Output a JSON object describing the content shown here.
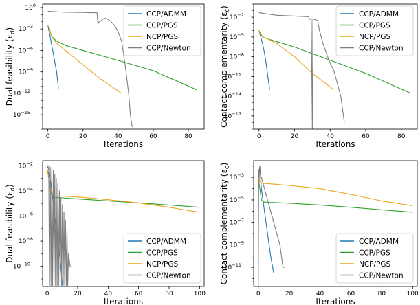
{
  "chart_data": [
    {
      "type": "line",
      "xlabel": "Iterations",
      "ylabel": "Dual feasibility (ε_d)",
      "yscale": "log",
      "xlim": [
        -3,
        89
      ],
      "ylim": [
        1e-17,
        3
      ],
      "xticks": [
        0,
        20,
        40,
        60,
        80
      ],
      "yticks": [
        {
          "v": 1,
          "t": "10",
          "e": "0"
        },
        {
          "v": 0.001,
          "t": "10",
          "e": "−3"
        },
        {
          "v": 1e-06,
          "t": "10",
          "e": "−6"
        },
        {
          "v": 1e-09,
          "t": "10",
          "e": "−9"
        },
        {
          "v": 1e-12,
          "t": "10",
          "e": "−12"
        },
        {
          "v": 1e-15,
          "t": "10",
          "e": "−15"
        }
      ],
      "legend_position": "top-right",
      "series": [
        {
          "name": "CCP/ADMM",
          "color": "#1f77b4",
          "x": [
            0,
            1,
            2,
            3,
            4,
            5,
            6
          ],
          "y": [
            0.003,
            0.0002,
            1e-05,
            5e-07,
            2e-08,
            1e-09,
            5e-12
          ]
        },
        {
          "name": "CCP/PGS",
          "color": "#2ca02c",
          "x": [
            0,
            1,
            2,
            5,
            10,
            20,
            40,
            60,
            85
          ],
          "y": [
            0.003,
            0.001,
            0.0001,
            2e-05,
            5e-06,
            1e-06,
            4e-08,
            1.5e-09,
            3e-12
          ]
        },
        {
          "name": "NCP/PGS",
          "color": "#e8a317",
          "x": [
            0,
            1,
            2,
            5,
            10,
            20,
            30,
            42
          ],
          "y": [
            0.003,
            0.001,
            0.0001,
            1e-05,
            1e-06,
            1e-08,
            1e-10,
            1e-12
          ]
        },
        {
          "name": "CCP/Newton",
          "color": "#7f7f7f",
          "x": [
            0,
            5,
            10,
            20,
            28,
            28.3,
            28.6,
            29,
            30,
            31,
            32,
            33,
            34,
            36,
            38,
            40,
            42,
            44,
            45,
            46,
            47,
            48
          ],
          "y": [
            0.3,
            0.25,
            0.22,
            0.2,
            0.18,
            0.02,
            0.005,
            0.01,
            0.012,
            0.02,
            0.03,
            0.03,
            0.025,
            0.01,
            0.003,
            0.0004,
            2e-05,
            1e-08,
            1e-10,
            1e-12,
            1e-15,
            2e-17
          ]
        }
      ]
    },
    {
      "type": "line",
      "xlabel": "Iterations",
      "ylabel": "Contact complementarity (ε_c)",
      "yscale": "log",
      "xlim": [
        -3,
        89
      ],
      "ylim": [
        1e-19,
        1
      ],
      "xticks": [
        0,
        20,
        40,
        60,
        80
      ],
      "yticks": [
        {
          "v": 0.01,
          "t": "10",
          "e": "−2"
        },
        {
          "v": 1e-05,
          "t": "10",
          "e": "−5"
        },
        {
          "v": 1e-08,
          "t": "10",
          "e": "−8"
        },
        {
          "v": 1e-11,
          "t": "10",
          "e": "−11"
        },
        {
          "v": 1e-14,
          "t": "10",
          "e": "−14"
        },
        {
          "v": 1e-17,
          "t": "10",
          "e": "−17"
        }
      ],
      "legend_position": "top-right",
      "series": [
        {
          "name": "CCP/ADMM",
          "color": "#1f77b4",
          "x": [
            0,
            1,
            2,
            3,
            4,
            5,
            6
          ],
          "y": [
            0.0001,
            1e-05,
            1e-06,
            5e-08,
            1e-09,
            1e-11,
            1e-13
          ]
        },
        {
          "name": "CCP/PGS",
          "color": "#2ca02c",
          "x": [
            0,
            1,
            2,
            5,
            10,
            20,
            40,
            60,
            85
          ],
          "y": [
            0.0001,
            3e-05,
            1e-05,
            5e-06,
            2e-06,
            3e-07,
            3e-09,
            3e-11,
            3e-14
          ]
        },
        {
          "name": "NCP/PGS",
          "color": "#e8a317",
          "x": [
            0,
            1,
            2,
            5,
            10,
            20,
            30,
            42
          ],
          "y": [
            0.0001,
            2e-05,
            1e-05,
            5e-06,
            1e-06,
            1e-08,
            3e-11,
            1e-13
          ]
        },
        {
          "name": "CCP/Newton",
          "color": "#7f7f7f",
          "x": [
            0,
            5,
            10,
            20,
            28,
            28.4,
            29.4,
            30,
            30.3,
            31,
            32,
            33,
            34,
            36,
            38,
            40,
            42,
            44,
            46,
            47,
            48
          ],
          "y": [
            0.05,
            0.03,
            0.02,
            0.015,
            0.012,
            0.005,
            0.005,
            1e-19,
            0.005,
            0.005,
            0.004,
            0.003,
            0.0001,
            1e-06,
            3e-08,
            1e-09,
            1e-10,
            1e-12,
            1e-14,
            1e-16,
            1e-18
          ]
        }
      ]
    },
    {
      "type": "line",
      "xlabel": "Iterations",
      "ylabel": "Dual feasibility (ε_d)",
      "yscale": "log",
      "xlim": [
        -3,
        103
      ],
      "ylim": [
        2.5e-12,
        0.025
      ],
      "xticks": [
        0,
        20,
        40,
        60,
        80,
        100
      ],
      "yticks": [
        {
          "v": 0.01,
          "t": "10",
          "e": "−2"
        },
        {
          "v": 0.0001,
          "t": "10",
          "e": "−4"
        },
        {
          "v": 1e-06,
          "t": "10",
          "e": "−6"
        },
        {
          "v": 1e-08,
          "t": "10",
          "e": "−8"
        },
        {
          "v": 1e-10,
          "t": "10",
          "e": "−10"
        }
      ],
      "legend_position": "bottom-right",
      "series": [
        {
          "name": "CCP/ADMM",
          "color": "#1f77b4",
          "x": [
            0,
            1,
            2,
            3,
            4,
            5,
            6,
            7,
            8,
            9,
            10
          ],
          "y": [
            0.01,
            0.005,
            0.001,
            0.0001,
            1e-05,
            1e-06,
            1e-07,
            1e-08,
            1e-09,
            1e-10,
            3e-12
          ]
        },
        {
          "name": "CCP/PGS",
          "color": "#2ca02c",
          "x": [
            0,
            1,
            2,
            3,
            5,
            10,
            20,
            40,
            60,
            80,
            100
          ],
          "y": [
            0.005,
            0.002,
            0.0001,
            4e-05,
            3e-05,
            2.8e-05,
            2.3e-05,
            1.6e-05,
            1.1e-05,
            7.5e-06,
            5e-06
          ]
        },
        {
          "name": "NCP/PGS",
          "color": "#e8a317",
          "x": [
            0,
            1,
            2,
            3,
            5,
            10,
            20,
            40,
            60,
            80,
            100
          ],
          "y": [
            0.005,
            0.001,
            0.0002,
            5e-05,
            4e-05,
            3.8e-05,
            3.3e-05,
            2e-05,
            1.1e-05,
            5e-06,
            2e-06
          ]
        },
        {
          "name": "CCP/Newton",
          "color": "#7f7f7f",
          "x": [
            0,
            1,
            1.5,
            2,
            2.5,
            3,
            3.5,
            4,
            4.5,
            5,
            5.5,
            6,
            6.5,
            7,
            7.5,
            8,
            8.5,
            9,
            9.5,
            10,
            10.5,
            11,
            11.5,
            12,
            12.5,
            13,
            13.5,
            14,
            15,
            16
          ],
          "y": [
            0.01,
            0.01,
            3e-12,
            0.008,
            3e-12,
            0.006,
            3e-12,
            0.004,
            3e-12,
            0.002,
            3e-12,
            0.001,
            3e-12,
            0.0004,
            3e-12,
            0.0001,
            3e-12,
            3e-05,
            3e-12,
            8e-06,
            3e-12,
            2e-06,
            3e-12,
            5e-07,
            3e-12,
            1e-07,
            3e-12,
            1e-09,
            1e-10,
            1e-10
          ]
        }
      ]
    },
    {
      "type": "line",
      "xlabel": "Iterations",
      "ylabel": "Contact complementarity (ε_c)",
      "yscale": "log",
      "xlim": [
        -3,
        103
      ],
      "ylim": [
        2e-13,
        0.03
      ],
      "xticks": [
        0,
        20,
        40,
        60,
        80,
        100
      ],
      "yticks": [
        {
          "v": 0.001,
          "t": "10",
          "e": "−3"
        },
        {
          "v": 1e-05,
          "t": "10",
          "e": "−5"
        },
        {
          "v": 1e-07,
          "t": "10",
          "e": "−7"
        },
        {
          "v": 1e-09,
          "t": "10",
          "e": "−9"
        },
        {
          "v": 1e-11,
          "t": "10",
          "e": "−11"
        }
      ],
      "legend_position": "bottom-right",
      "series": [
        {
          "name": "CCP/ADMM",
          "color": "#1f77b4",
          "x": [
            0,
            1,
            2,
            4,
            6,
            8,
            10
          ],
          "y": [
            0.001,
            0.01,
            0.0001,
            1e-06,
            1e-08,
            1e-10,
            3e-12
          ]
        },
        {
          "name": "CCP/PGS",
          "color": "#2ca02c",
          "x": [
            0,
            1,
            2,
            3,
            5,
            10,
            20,
            40,
            60,
            80,
            100
          ],
          "y": [
            0.001,
            0.0001,
            1e-05,
            7e-06,
            6e-06,
            5.8e-06,
            5e-06,
            3.5e-06,
            2.2e-06,
            1.3e-06,
            8e-07
          ]
        },
        {
          "name": "NCP/PGS",
          "color": "#e8a317",
          "x": [
            0,
            1,
            2,
            5,
            10,
            20,
            40,
            60,
            80,
            100
          ],
          "y": [
            0.003,
            0.0004,
            0.0003,
            0.00028,
            0.00025,
            0.00019,
            0.0001,
            3e-05,
            8e-06,
            3e-06
          ]
        },
        {
          "name": "CCP/Newton",
          "color": "#7f7f7f",
          "x": [
            0,
            0.3,
            0.6,
            1,
            1.5,
            2,
            4,
            6,
            8,
            10,
            12,
            14,
            16,
            17
          ],
          "y": [
            2e-13,
            0.005,
            0.001,
            0.01,
            0.001,
            0.001,
            0.0001,
            1e-05,
            1e-06,
            1e-07,
            1e-08,
            1e-09,
            1e-11,
            1e-11
          ]
        }
      ]
    }
  ]
}
